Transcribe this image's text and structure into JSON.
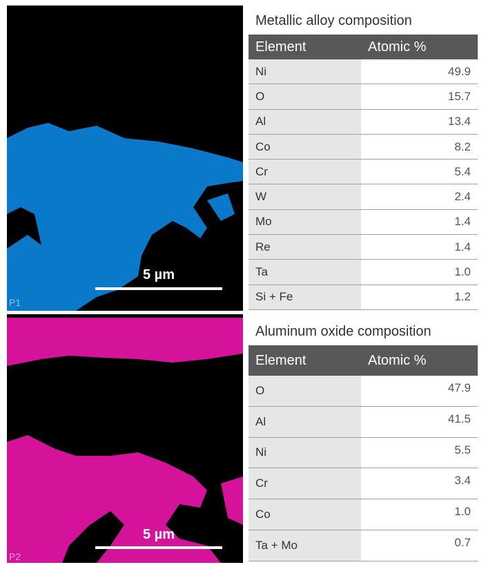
{
  "panels": [
    {
      "label": "P1",
      "scale": "5 µm"
    },
    {
      "label": "P2",
      "scale": "5 µm"
    }
  ],
  "tables": [
    {
      "title": "Metallic alloy composition",
      "header": [
        "Element",
        "Atomic %"
      ],
      "rows": [
        [
          "Ni",
          "49.9"
        ],
        [
          "O",
          "15.7"
        ],
        [
          "Al",
          "13.4"
        ],
        [
          "Co",
          "8.2"
        ],
        [
          "Cr",
          "5.4"
        ],
        [
          "W",
          "2.4"
        ],
        [
          "Mo",
          "1.4"
        ],
        [
          "Re",
          "1.4"
        ],
        [
          "Ta",
          "1.0"
        ],
        [
          "Si + Fe",
          "1.2"
        ]
      ]
    },
    {
      "title": "Aluminum oxide composition",
      "header": [
        "Element",
        "Atomic %"
      ],
      "rows": [
        [
          "O",
          "47.9"
        ],
        [
          "Al",
          "41.5"
        ],
        [
          "Ni",
          "5.5"
        ],
        [
          "Cr",
          "3.4"
        ],
        [
          "Co",
          "1.0"
        ],
        [
          "Ta + Mo",
          "0.7"
        ]
      ]
    }
  ]
}
